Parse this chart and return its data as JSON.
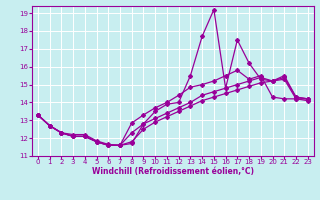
{
  "xlabel": "Windchill (Refroidissement éolien,°C)",
  "bg_color": "#c8eef0",
  "line_color": "#990099",
  "grid_color": "#ffffff",
  "xlim": [
    -0.5,
    23.5
  ],
  "ylim": [
    11,
    19.4
  ],
  "yticks": [
    11,
    12,
    13,
    14,
    15,
    16,
    17,
    18,
    19
  ],
  "xticks": [
    0,
    1,
    2,
    3,
    4,
    5,
    6,
    7,
    8,
    9,
    10,
    11,
    12,
    13,
    14,
    15,
    16,
    17,
    18,
    19,
    20,
    21,
    22,
    23
  ],
  "line1_x": [
    0,
    1,
    2,
    3,
    4,
    5,
    6,
    7,
    8,
    9,
    10,
    11,
    12,
    13,
    14,
    15,
    16,
    17,
    18,
    19,
    20,
    21,
    22,
    23
  ],
  "line1_y": [
    13.3,
    12.7,
    12.3,
    12.2,
    12.2,
    11.85,
    11.65,
    11.6,
    11.7,
    12.8,
    13.5,
    13.9,
    14.0,
    15.5,
    17.7,
    19.2,
    14.8,
    17.5,
    16.2,
    15.3,
    15.2,
    15.5,
    14.3,
    14.2
  ],
  "line2_x": [
    0,
    1,
    2,
    3,
    4,
    5,
    6,
    7,
    8,
    9,
    10,
    11,
    12,
    13,
    14,
    15,
    16,
    17,
    18,
    19,
    20,
    21,
    22,
    23
  ],
  "line2_y": [
    13.3,
    12.7,
    12.3,
    12.1,
    12.1,
    11.8,
    11.6,
    11.6,
    12.85,
    13.3,
    13.7,
    14.0,
    14.4,
    14.85,
    15.0,
    15.2,
    15.5,
    15.8,
    15.3,
    15.5,
    14.3,
    14.2,
    14.2,
    14.2
  ],
  "line3_x": [
    0,
    1,
    2,
    3,
    4,
    5,
    6,
    7,
    8,
    9,
    10,
    11,
    12,
    13,
    14,
    15,
    16,
    17,
    18,
    19,
    20,
    21,
    22,
    23
  ],
  "line3_y": [
    13.3,
    12.7,
    12.3,
    12.1,
    12.1,
    11.8,
    11.6,
    11.6,
    12.3,
    12.8,
    13.1,
    13.4,
    13.7,
    14.0,
    14.4,
    14.6,
    14.8,
    15.0,
    15.2,
    15.4,
    15.2,
    15.4,
    14.3,
    14.2
  ],
  "line4_x": [
    0,
    1,
    2,
    3,
    4,
    5,
    6,
    7,
    8,
    9,
    10,
    11,
    12,
    13,
    14,
    15,
    16,
    17,
    18,
    19,
    20,
    21,
    22,
    23
  ],
  "line4_y": [
    13.3,
    12.7,
    12.3,
    12.1,
    12.1,
    11.8,
    11.6,
    11.6,
    11.8,
    12.5,
    12.9,
    13.2,
    13.5,
    13.8,
    14.1,
    14.3,
    14.5,
    14.7,
    14.9,
    15.1,
    15.2,
    15.3,
    14.2,
    14.1
  ],
  "marker": "D",
  "markersize": 2.0,
  "linewidth": 0.9,
  "xlabel_fontsize": 5.5,
  "tick_fontsize": 5.0
}
